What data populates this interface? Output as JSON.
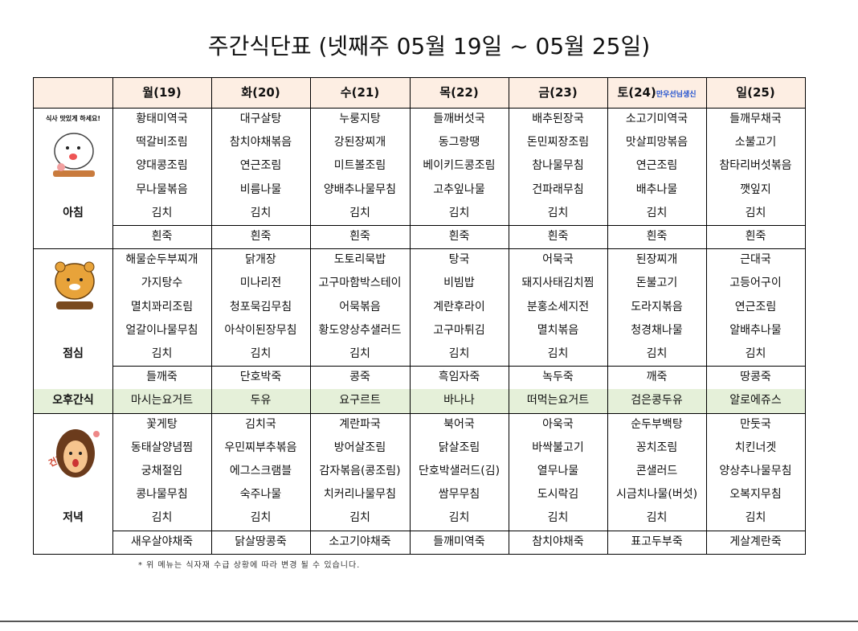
{
  "title": "주간식단표 (넷째주 05월 19일 ~ 05월 25일)",
  "header": {
    "days": [
      "월(19)",
      "화(20)",
      "수(21)",
      "목(22)",
      "금(23)",
      "토(24)",
      "일(25)"
    ],
    "birthday": "만우선님생신"
  },
  "meals": [
    {
      "label": "아침",
      "icon_text": "식사 맛있게 하세요!",
      "rows": [
        [
          "황태미역국",
          "대구살탕",
          "누룽지탕",
          "들깨버섯국",
          "배추된장국",
          "소고기미역국",
          "들깨무채국"
        ],
        [
          "떡갈비조림",
          "참치야채볶음",
          "강된장찌개",
          "동그랑땡",
          "돈민찌장조림",
          "맛살피망볶음",
          "소불고기"
        ],
        [
          "양대콩조림",
          "연근조림",
          "미트볼조림",
          "베이키드콩조림",
          "참나물무침",
          "연근조림",
          "참타리버섯볶음"
        ],
        [
          "무나물볶음",
          "비름나물",
          "양배추나물무침",
          "고추잎나물",
          "건파래무침",
          "배추나물",
          "깻잎지"
        ],
        [
          "김치",
          "김치",
          "김치",
          "김치",
          "김치",
          "김치",
          "김치"
        ],
        [
          "흰죽",
          "흰죽",
          "흰죽",
          "흰죽",
          "흰죽",
          "흰죽",
          "흰죽"
        ]
      ]
    },
    {
      "label": "점심",
      "rows": [
        [
          "해물순두부찌개",
          "닭개장",
          "도토리묵밥",
          "탕국",
          "어묵국",
          "된장찌개",
          "근대국"
        ],
        [
          "가지탕수",
          "미나리전",
          "고구마함박스테이",
          "비빔밥",
          "돼지사태김치찜",
          "돈불고기",
          "고등어구이"
        ],
        [
          "멸치꽈리조림",
          "청포묵김무침",
          "어묵볶음",
          "계란후라이",
          "분홍소세지전",
          "도라지볶음",
          "연근조림"
        ],
        [
          "얼갈이나물무침",
          "아삭이된장무침",
          "황도양상추샐러드",
          "고구마튀김",
          "멸치볶음",
          "청경채나물",
          "알배추나물"
        ],
        [
          "김치",
          "김치",
          "김치",
          "김치",
          "김치",
          "김치",
          "김치"
        ],
        [
          "들깨죽",
          "단호박죽",
          "콩죽",
          "흑임자죽",
          "녹두죽",
          "깨죽",
          "땅콩죽"
        ]
      ]
    },
    {
      "label": "오후간식",
      "rows": [
        [
          "마시는요거트",
          "두유",
          "요구르트",
          "바나나",
          "떠먹는요거트",
          "검은콩두유",
          "알로에쥬스"
        ]
      ]
    },
    {
      "label": "저녁",
      "icon_text": "건강하세요~",
      "rows": [
        [
          "꽃게탕",
          "김치국",
          "계란파국",
          "북어국",
          "아욱국",
          "순두부백탕",
          "만둣국"
        ],
        [
          "동태살양념찜",
          "우민찌부추볶음",
          "방어살조림",
          "닭살조림",
          "바싹불고기",
          "꽁치조림",
          "치킨너겟"
        ],
        [
          "궁채절임",
          "에그스크램블",
          "감자볶음(콩조림)",
          "단호박샐러드(김)",
          "열무나물",
          "콘샐러드",
          "양상추나물무침"
        ],
        [
          "콩나물무침",
          "숙주나물",
          "치커리나물무침",
          "쌈무무침",
          "도시락김",
          "시금치나물(버섯)",
          "오복지무침"
        ],
        [
          "김치",
          "김치",
          "김치",
          "김치",
          "김치",
          "김치",
          "김치"
        ],
        [
          "새우살야채죽",
          "닭살땅콩죽",
          "소고기야채죽",
          "들깨미역죽",
          "참치야채죽",
          "표고두부죽",
          "게살계란죽"
        ]
      ]
    }
  ],
  "footnote": "* 위 메뉴는 식자재 수급 상황에 따라 변경 될 수 있습니다."
}
